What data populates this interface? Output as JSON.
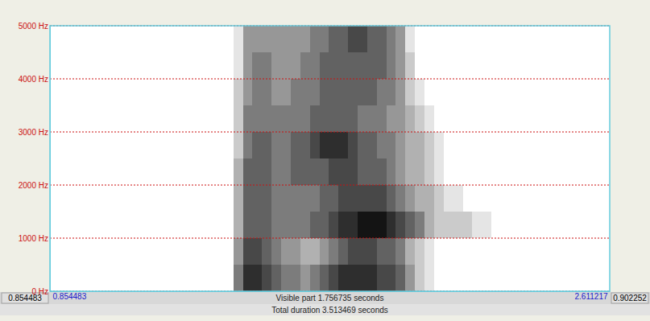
{
  "chart_data": {
    "type": "spectrogram",
    "xlim": [
      0.854483,
      2.611217
    ],
    "xticks": [
      0.854483,
      2.611217
    ],
    "ylim": [
      0,
      5000
    ],
    "yticks": [
      {
        "value": 0,
        "label": "0 Hz"
      },
      {
        "value": 1000,
        "label": "1000 Hz"
      },
      {
        "value": 2000,
        "label": "2000 Hz"
      },
      {
        "value": 3000,
        "label": "3000 Hz"
      },
      {
        "value": 4000,
        "label": "4000 Hz"
      },
      {
        "value": 5000,
        "label": "5000 Hz"
      }
    ],
    "grid": true,
    "window_before": 0.854483,
    "window_after": 0.902252,
    "annotations": [
      "Visible part 1.756735 seconds",
      "Total duration 3.513469 seconds"
    ],
    "time_edges": [
      1.43,
      1.46,
      1.49,
      1.52,
      1.55,
      1.58,
      1.61,
      1.64,
      1.67,
      1.7,
      1.73,
      1.76,
      1.79,
      1.82,
      1.85,
      1.88,
      1.91,
      1.94,
      1.97,
      2.0,
      2.03,
      2.06,
      2.09,
      2.12,
      2.15,
      2.18,
      2.21,
      2.24,
      2.27
    ],
    "freq_edges": [
      0,
      500,
      1000,
      1500,
      2000,
      2500,
      3000,
      3500,
      4000,
      4500,
      5000
    ],
    "cells": [
      [
        5,
        8,
        8,
        7,
        6,
        5,
        5,
        4,
        5,
        6,
        7,
        8,
        8,
        8,
        8,
        7,
        7,
        6,
        4,
        2,
        1,
        0,
        0,
        0,
        0,
        0,
        0,
        0
      ],
      [
        4,
        7,
        7,
        6,
        5,
        4,
        4,
        3,
        3,
        4,
        5,
        6,
        7,
        7,
        7,
        6,
        6,
        5,
        3,
        2,
        1,
        0,
        0,
        0,
        0,
        0,
        0,
        0
      ],
      [
        3,
        6,
        6,
        6,
        5,
        5,
        5,
        5,
        6,
        6,
        7,
        8,
        8,
        9,
        9,
        9,
        8,
        7,
        6,
        5,
        3,
        2,
        2,
        2,
        2,
        1,
        1,
        0
      ],
      [
        3,
        6,
        6,
        6,
        5,
        5,
        5,
        5,
        5,
        6,
        6,
        7,
        7,
        7,
        7,
        7,
        6,
        5,
        4,
        3,
        3,
        2,
        1,
        1,
        0,
        0,
        0,
        0
      ],
      [
        3,
        6,
        6,
        6,
        5,
        5,
        6,
        6,
        6,
        6,
        7,
        7,
        7,
        6,
        6,
        6,
        5,
        4,
        3,
        3,
        2,
        1,
        0,
        0,
        0,
        0,
        0,
        0
      ],
      [
        2,
        5,
        6,
        6,
        5,
        5,
        6,
        6,
        7,
        8,
        8,
        8,
        7,
        6,
        6,
        5,
        5,
        4,
        3,
        3,
        2,
        1,
        0,
        0,
        0,
        0,
        0,
        0
      ],
      [
        2,
        5,
        5,
        5,
        5,
        5,
        5,
        5,
        6,
        6,
        6,
        6,
        6,
        5,
        5,
        5,
        4,
        4,
        3,
        2,
        1,
        0,
        0,
        0,
        0,
        0,
        0,
        0
      ],
      [
        2,
        4,
        5,
        5,
        4,
        4,
        5,
        5,
        5,
        6,
        6,
        6,
        6,
        6,
        6,
        5,
        5,
        4,
        2,
        1,
        0,
        0,
        0,
        0,
        0,
        0,
        0,
        0
      ],
      [
        1,
        4,
        5,
        5,
        4,
        4,
        4,
        5,
        5,
        6,
        6,
        6,
        6,
        6,
        6,
        6,
        5,
        4,
        2,
        0,
        0,
        0,
        0,
        0,
        0,
        0,
        0,
        0
      ],
      [
        1,
        4,
        4,
        4,
        4,
        4,
        4,
        4,
        5,
        5,
        6,
        6,
        7,
        7,
        6,
        6,
        5,
        4,
        1,
        0,
        0,
        0,
        0,
        0,
        0,
        0,
        0,
        0
      ]
    ]
  }
}
